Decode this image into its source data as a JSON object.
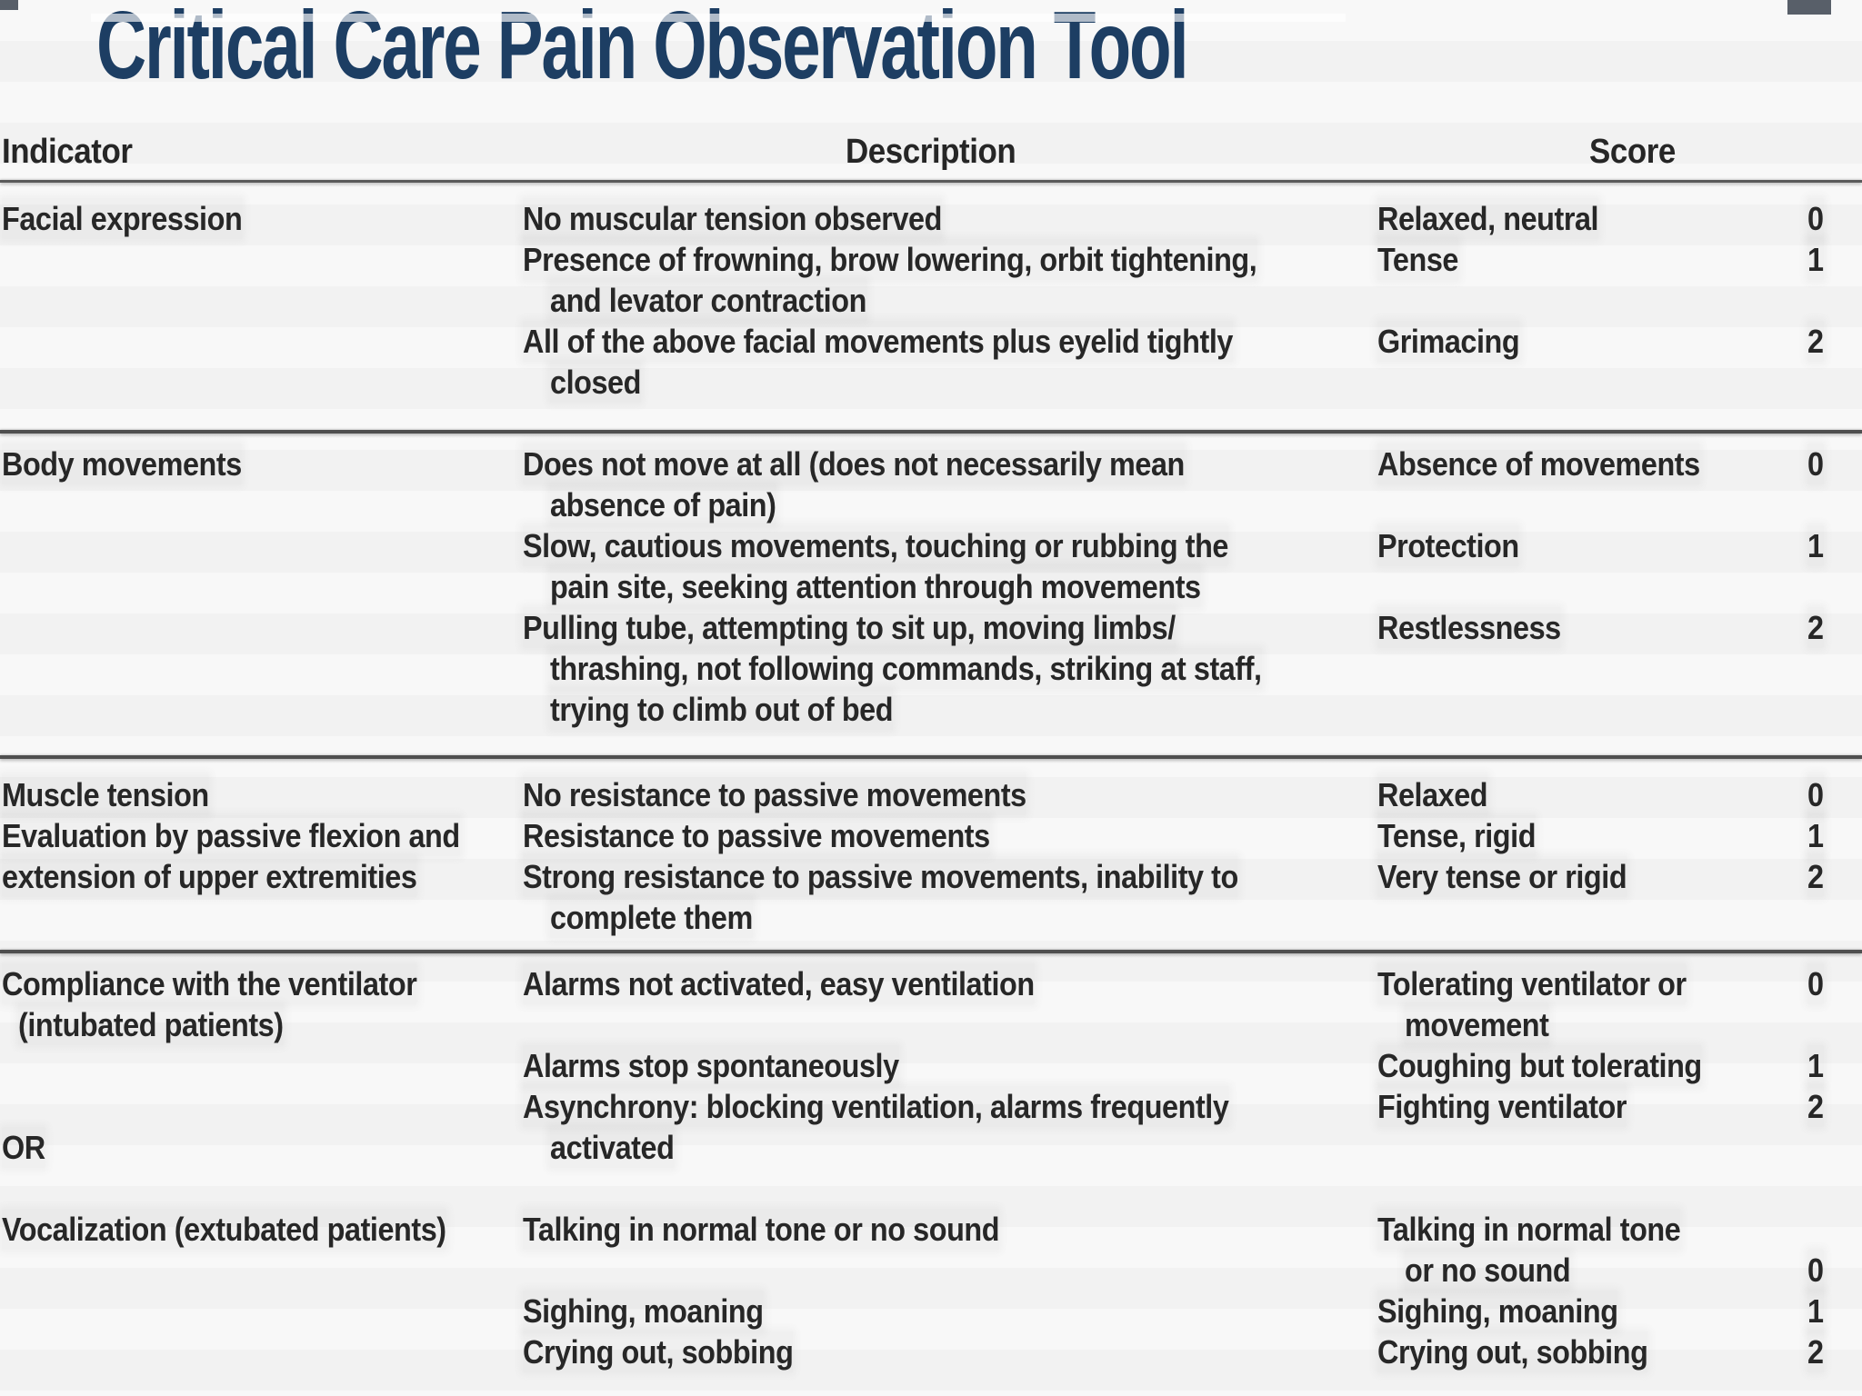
{
  "title": "Critical Care Pain Observation Tool",
  "header": {
    "indicator": "Indicator",
    "description": "Description",
    "score": "Score"
  },
  "colors": {
    "title_navy": "#1d3e63",
    "body_text": "#272727",
    "divider_gray": "#4f4f4f",
    "background": "#fbfbfb"
  },
  "sections": [
    {
      "indicator_lines": [
        {
          "t": "Facial expression",
          "i": 0
        },
        {
          "t": "",
          "i": 0
        },
        {
          "t": "",
          "i": 0
        },
        {
          "t": "",
          "i": 0
        },
        {
          "t": "",
          "i": 0
        }
      ],
      "description_lines": [
        {
          "t": "No muscular tension observed",
          "i": 0
        },
        {
          "t": "Presence of frowning, brow lowering, orbit tightening,",
          "i": 0
        },
        {
          "t": "and levator contraction",
          "i": 1
        },
        {
          "t": "All of the above facial movements plus eyelid tightly",
          "i": 0
        },
        {
          "t": "closed",
          "i": 1
        }
      ],
      "score_label_lines": [
        {
          "t": "Relaxed, neutral",
          "i": 0
        },
        {
          "t": "Tense",
          "i": 0
        },
        {
          "t": "",
          "i": 0
        },
        {
          "t": "Grimacing",
          "i": 0
        },
        {
          "t": "",
          "i": 0
        }
      ],
      "score_lines": [
        "0",
        "1",
        "",
        "2",
        ""
      ]
    },
    {
      "indicator_lines": [
        {
          "t": "Body movements",
          "i": 0
        },
        {
          "t": "",
          "i": 0
        },
        {
          "t": "",
          "i": 0
        },
        {
          "t": "",
          "i": 0
        },
        {
          "t": "",
          "i": 0
        },
        {
          "t": "",
          "i": 0
        },
        {
          "t": "",
          "i": 0
        }
      ],
      "description_lines": [
        {
          "t": "Does not move at all (does not necessarily mean",
          "i": 0
        },
        {
          "t": "absence of pain)",
          "i": 1
        },
        {
          "t": "Slow, cautious movements, touching or rubbing the",
          "i": 0
        },
        {
          "t": "pain site, seeking attention through movements",
          "i": 1
        },
        {
          "t": "Pulling tube, attempting to sit up, moving limbs/",
          "i": 0
        },
        {
          "t": "thrashing, not following commands, striking at staff,",
          "i": 1
        },
        {
          "t": "trying to climb out of bed",
          "i": 1
        }
      ],
      "score_label_lines": [
        {
          "t": "Absence of movements",
          "i": 0
        },
        {
          "t": "",
          "i": 0
        },
        {
          "t": "Protection",
          "i": 0
        },
        {
          "t": "",
          "i": 0
        },
        {
          "t": "Restlessness",
          "i": 0
        },
        {
          "t": "",
          "i": 0
        },
        {
          "t": "",
          "i": 0
        }
      ],
      "score_lines": [
        "0",
        "",
        "1",
        "",
        "2",
        "",
        ""
      ]
    },
    {
      "indicator_lines": [
        {
          "t": "Muscle tension",
          "i": 0
        },
        {
          "t": "Evaluation by passive flexion and",
          "i": 0
        },
        {
          "t": "extension of upper extremities",
          "i": 0
        },
        {
          "t": "",
          "i": 0
        }
      ],
      "description_lines": [
        {
          "t": "No resistance to passive movements",
          "i": 0
        },
        {
          "t": "Resistance to passive movements",
          "i": 0
        },
        {
          "t": "Strong resistance to passive movements, inability to",
          "i": 0
        },
        {
          "t": "complete them",
          "i": 1
        }
      ],
      "score_label_lines": [
        {
          "t": "Relaxed",
          "i": 0
        },
        {
          "t": "Tense, rigid",
          "i": 0
        },
        {
          "t": "Very tense or rigid",
          "i": 0
        },
        {
          "t": "",
          "i": 0
        }
      ],
      "score_lines": [
        "0",
        "1",
        "2",
        ""
      ]
    },
    {
      "indicator_lines": [
        {
          "t": "Compliance with the ventilator",
          "i": 0
        },
        {
          "t": "(intubated patients)",
          "i": 1
        },
        {
          "t": "",
          "i": 0
        },
        {
          "t": "",
          "i": 0
        },
        {
          "t": "OR",
          "i": 0
        },
        {
          "t": "",
          "i": 0
        },
        {
          "t": "Vocalization (extubated patients)",
          "i": 0
        },
        {
          "t": "",
          "i": 0
        },
        {
          "t": "",
          "i": 0
        },
        {
          "t": "",
          "i": 0
        }
      ],
      "description_lines": [
        {
          "t": "Alarms not activated, easy ventilation",
          "i": 0
        },
        {
          "t": "",
          "i": 0
        },
        {
          "t": "Alarms stop spontaneously",
          "i": 0
        },
        {
          "t": "Asynchrony: blocking ventilation, alarms frequently",
          "i": 0
        },
        {
          "t": "activated",
          "i": 1
        },
        {
          "t": "",
          "i": 0
        },
        {
          "t": "Talking in normal tone or no sound",
          "i": 0
        },
        {
          "t": "",
          "i": 0
        },
        {
          "t": "Sighing, moaning",
          "i": 0
        },
        {
          "t": "Crying out, sobbing",
          "i": 0
        }
      ],
      "score_label_lines": [
        {
          "t": "Tolerating ventilator or",
          "i": 0
        },
        {
          "t": "movement",
          "i": 1
        },
        {
          "t": "Coughing but tolerating",
          "i": 0
        },
        {
          "t": "Fighting ventilator",
          "i": 0
        },
        {
          "t": "",
          "i": 0
        },
        {
          "t": "",
          "i": 0
        },
        {
          "t": "Talking in normal tone",
          "i": 0
        },
        {
          "t": "or no sound",
          "i": 1
        },
        {
          "t": "Sighing, moaning",
          "i": 0
        },
        {
          "t": "Crying out, sobbing",
          "i": 0
        }
      ],
      "score_lines": [
        "0",
        "",
        "1",
        "2",
        "",
        "",
        "",
        "0",
        "1",
        "2"
      ]
    }
  ]
}
